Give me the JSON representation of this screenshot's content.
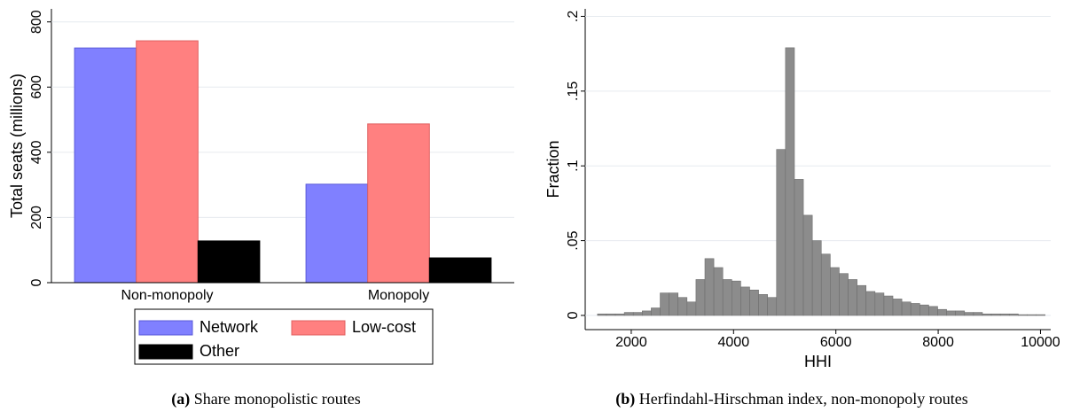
{
  "chart_data": [
    {
      "type": "bar",
      "caption_label": "(a)",
      "caption": "Share monopolistic routes",
      "y_label": "Total seats (millions)",
      "categories": [
        "Non-monopoly",
        "Monopoly"
      ],
      "series": [
        {
          "name": "Network",
          "color": "#8080ff",
          "values": [
            720,
            302
          ]
        },
        {
          "name": "Low-cost",
          "color": "#ff8080",
          "values": [
            742,
            487
          ]
        },
        {
          "name": "Other",
          "color": "#000000",
          "values": [
            128,
            76
          ]
        }
      ],
      "ylim": [
        0,
        840
      ],
      "yticks": [
        0,
        200,
        400,
        600,
        800
      ],
      "grid": true
    },
    {
      "type": "histogram",
      "caption_label": "(b)",
      "caption": "Herfindahl-Hirschman index, non-monopoly routes",
      "x_label": "HHI",
      "y_label": "Fraction",
      "color": "#8c8c8c",
      "bins": [
        1340,
        1515,
        1690,
        1865,
        2040,
        2215,
        2390,
        2565,
        2740,
        2915,
        3090,
        3265,
        3440,
        3615,
        3790,
        3965,
        4140,
        4315,
        4490,
        4665,
        4840,
        5015,
        5190,
        5365,
        5540,
        5715,
        5890,
        6065,
        6240,
        6415,
        6590,
        6765,
        6940,
        7115,
        7290,
        7465,
        7640,
        7815,
        7990,
        8165,
        8340,
        8515,
        8690,
        8865,
        9040,
        9215,
        9390,
        9565,
        9740,
        9915,
        10090
      ],
      "values": [
        0.001,
        0.001,
        0.001,
        0.002,
        0.002,
        0.003,
        0.005,
        0.015,
        0.015,
        0.012,
        0.009,
        0.024,
        0.038,
        0.032,
        0.024,
        0.023,
        0.019,
        0.017,
        0.014,
        0.012,
        0.111,
        0.179,
        0.091,
        0.067,
        0.05,
        0.041,
        0.032,
        0.028,
        0.024,
        0.02,
        0.016,
        0.015,
        0.013,
        0.011,
        0.009,
        0.008,
        0.007,
        0.006,
        0.004,
        0.003,
        0.003,
        0.002,
        0.002,
        0.001,
        0.001,
        0.001,
        0.001,
        0.0005,
        0.0005,
        0.0005
      ],
      "xlim": [
        1100,
        10200
      ],
      "xticks": [
        2000,
        4000,
        6000,
        8000,
        10000
      ],
      "ylim": [
        -0.0095,
        0.205
      ],
      "yticks": [
        0,
        {
          "value": 0.05,
          "label": ".05"
        },
        {
          "value": 0.1,
          "label": ".1"
        },
        {
          "value": 0.15,
          "label": ".15"
        },
        {
          "value": 0.2,
          "label": ".2"
        }
      ],
      "grid": true
    }
  ]
}
